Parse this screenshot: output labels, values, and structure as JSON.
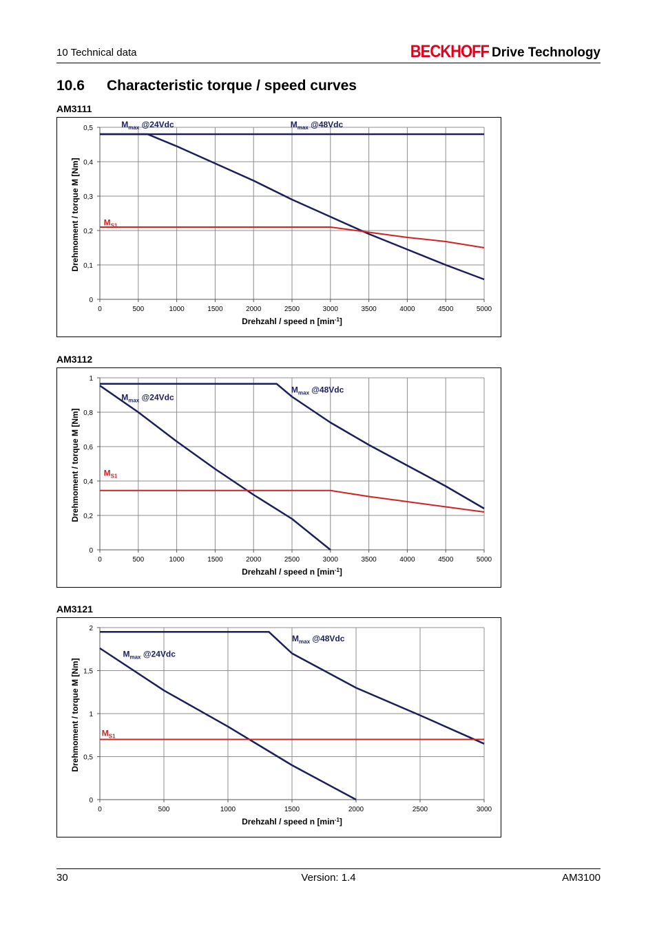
{
  "header": {
    "section": "10 Technical data",
    "brand": "BECKHOFF",
    "brand_sub": "Drive Technology"
  },
  "section": {
    "number": "10.6",
    "title": "Characteristic torque / speed curves"
  },
  "footer": {
    "page": "30",
    "version": "Version: 1.4",
    "doc": "AM3100"
  },
  "chart_data": [
    {
      "type": "line",
      "title": "AM3111",
      "xlabel": "Drehzahl / speed n [min-1]",
      "ylabel": "Drehmoment / torque M [Nm]",
      "xlim": [
        0,
        5000
      ],
      "ylim": [
        0,
        0.5
      ],
      "xticks": [
        0,
        500,
        1000,
        1500,
        2000,
        2500,
        3000,
        3500,
        4000,
        4500,
        5000
      ],
      "yticks": [
        0,
        0.1,
        0.2,
        0.3,
        0.4,
        0.5
      ],
      "ytick_labels": [
        "0",
        "0,1",
        "0,2",
        "0,3",
        "0,4",
        "0,5"
      ],
      "grid": true,
      "series": [
        {
          "name": "Mmax @24Vdc",
          "color": "#1a1f5c",
          "x": [
            0,
            620,
            1000,
            1500,
            2000,
            2500,
            3000,
            3500,
            4000,
            4500,
            5000
          ],
          "y": [
            0.48,
            0.48,
            0.445,
            0.395,
            0.345,
            0.29,
            0.24,
            0.19,
            0.145,
            0.1,
            0.058
          ]
        },
        {
          "name": "Mmax @48Vdc",
          "color": "#1a1f5c",
          "x": [
            0,
            5000
          ],
          "y": [
            0.48,
            0.48
          ]
        },
        {
          "name": "MS1",
          "color": "#d42020",
          "x": [
            0,
            3000,
            3500,
            4000,
            4500,
            5000
          ],
          "y": [
            0.21,
            0.21,
            0.195,
            0.18,
            0.168,
            0.15
          ]
        }
      ],
      "annotations": [
        {
          "main": "M",
          "sub": "max",
          "rest": " @24Vdc",
          "x": 280,
          "y": 0.5,
          "color": "#1a1f5c"
        },
        {
          "main": "M",
          "sub": "max",
          "rest": " @48Vdc",
          "x": 2480,
          "y": 0.5,
          "color": "#1a1f5c"
        },
        {
          "main": "M",
          "sub": "S1",
          "rest": "",
          "x": 50,
          "y": 0.215,
          "color": "#d42020"
        }
      ]
    },
    {
      "type": "line",
      "title": "AM3112",
      "xlabel": "Drehzahl / speed n [min-1]",
      "ylabel": "Drehmoment / torque M [Nm]",
      "xlim": [
        0,
        5000
      ],
      "ylim": [
        0,
        1
      ],
      "xticks": [
        0,
        500,
        1000,
        1500,
        2000,
        2500,
        3000,
        3500,
        4000,
        4500,
        5000
      ],
      "yticks": [
        0,
        0.2,
        0.4,
        0.6,
        0.8,
        1
      ],
      "ytick_labels": [
        "0",
        "0,2",
        "0,4",
        "0,6",
        "0,8",
        "1"
      ],
      "grid": true,
      "series": [
        {
          "name": "Mmax @24Vdc",
          "color": "#1a1f5c",
          "x": [
            0,
            500,
            1000,
            1500,
            2000,
            2500,
            3000
          ],
          "y": [
            0.955,
            0.8,
            0.63,
            0.47,
            0.32,
            0.18,
            0.0
          ]
        },
        {
          "name": "Mmax @48Vdc",
          "color": "#1a1f5c",
          "x": [
            0,
            2300,
            2500,
            3000,
            3500,
            4000,
            4500,
            5000
          ],
          "y": [
            0.965,
            0.965,
            0.89,
            0.74,
            0.61,
            0.49,
            0.37,
            0.24
          ]
        },
        {
          "name": "MS1",
          "color": "#d42020",
          "x": [
            0,
            3000,
            3500,
            4000,
            4500,
            5000
          ],
          "y": [
            0.345,
            0.345,
            0.31,
            0.28,
            0.25,
            0.22
          ]
        }
      ],
      "annotations": [
        {
          "main": "M",
          "sub": "max",
          "rest": " @24Vdc",
          "x": 280,
          "y": 0.87,
          "color": "#1a1f5c"
        },
        {
          "main": "M",
          "sub": "max",
          "rest": " @48Vdc",
          "x": 2490,
          "y": 0.915,
          "color": "#1a1f5c"
        },
        {
          "main": "M",
          "sub": "S1",
          "rest": "",
          "x": 50,
          "y": 0.43,
          "color": "#d42020"
        }
      ]
    },
    {
      "type": "line",
      "title": "AM3121",
      "xlabel": "Drehzahl / speed n [min-1]",
      "ylabel": "Drehmoment / torque M [Nm]",
      "xlim": [
        0,
        3000
      ],
      "ylim": [
        0,
        2
      ],
      "xticks": [
        0,
        500,
        1000,
        1500,
        2000,
        2500,
        3000
      ],
      "yticks": [
        0,
        0.5,
        1,
        1.5,
        2
      ],
      "ytick_labels": [
        "0",
        "0,5",
        "1",
        "1,5",
        "2"
      ],
      "grid": true,
      "series": [
        {
          "name": "Mmax @24Vdc",
          "color": "#1a1f5c",
          "x": [
            0,
            500,
            1000,
            1500,
            2000
          ],
          "y": [
            1.76,
            1.27,
            0.85,
            0.4,
            0.0
          ]
        },
        {
          "name": "Mmax @48Vdc",
          "color": "#1a1f5c",
          "x": [
            0,
            1320,
            1500,
            2000,
            2500,
            3000
          ],
          "y": [
            1.95,
            1.95,
            1.7,
            1.3,
            0.98,
            0.65
          ]
        },
        {
          "name": "MS1",
          "color": "#d42020",
          "x": [
            0,
            3000
          ],
          "y": [
            0.7,
            0.7
          ]
        }
      ],
      "annotations": [
        {
          "main": "M",
          "sub": "max",
          "rest": " @24Vdc",
          "x": 180,
          "y": 1.66,
          "color": "#1a1f5c"
        },
        {
          "main": "M",
          "sub": "max",
          "rest": " @48Vdc",
          "x": 1500,
          "y": 1.84,
          "color": "#1a1f5c"
        },
        {
          "main": "M",
          "sub": "S1",
          "rest": "",
          "x": 15,
          "y": 0.74,
          "color": "#d42020"
        }
      ]
    }
  ]
}
